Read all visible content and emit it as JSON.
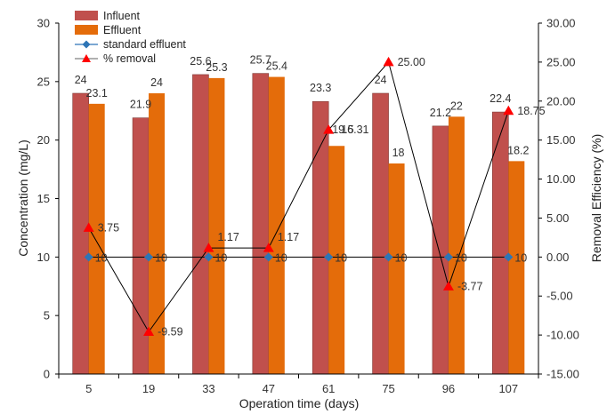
{
  "chart_data": {
    "type": "bar",
    "categories": [
      "5",
      "19",
      "33",
      "47",
      "61",
      "75",
      "96",
      "107"
    ],
    "series": [
      {
        "name": "Influent",
        "type": "bar",
        "axis": "left",
        "color": "#c0504d",
        "values": [
          24,
          21.9,
          25.6,
          25.7,
          23.3,
          24,
          21.2,
          22.4
        ],
        "labels": [
          "24",
          "21.9",
          "25.6",
          "25.7",
          "23.3",
          "24",
          "21.2",
          "22.4"
        ]
      },
      {
        "name": "Effluent",
        "type": "bar",
        "axis": "left",
        "color": "#e46c0a",
        "values": [
          23.1,
          24,
          25.3,
          25.4,
          19.5,
          18,
          22,
          18.2
        ],
        "labels": [
          "23.1",
          "24",
          "25.3",
          "25.4",
          "19.5",
          "18",
          "22",
          "18.2"
        ]
      },
      {
        "name": "standard effluent",
        "type": "line",
        "axis": "left",
        "color": "#2e75b6",
        "values": [
          10,
          10,
          10,
          10,
          10,
          10,
          10,
          10
        ],
        "labels": [
          "10",
          "10",
          "10",
          "10",
          "10",
          "10",
          "10",
          "10"
        ]
      },
      {
        "name": "% removal",
        "type": "line",
        "axis": "right",
        "color": "#ff0000",
        "values": [
          3.75,
          -9.59,
          1.17,
          1.17,
          16.31,
          25.0,
          -3.77,
          18.75
        ],
        "labels": [
          "3.75",
          "-9.59",
          "1.17",
          "1.17",
          "16.31",
          "25.00",
          "-3.77",
          "18.75"
        ]
      }
    ],
    "xlabel": "Operation time (days)",
    "ylabel": "Concentration (mg/L)",
    "y2label": "Removal Efficiency (%)",
    "ylim": [
      0,
      30
    ],
    "y2lim": [
      -15,
      30
    ],
    "yticks": [
      "0",
      "5",
      "10",
      "15",
      "20",
      "25",
      "30"
    ],
    "y2ticks": [
      "-15.00",
      "-10.00",
      "-5.00",
      "0.00",
      "5.00",
      "10.00",
      "15.00",
      "20.00",
      "25.00",
      "30.00"
    ],
    "grid": false,
    "legend_position": "top-left"
  }
}
